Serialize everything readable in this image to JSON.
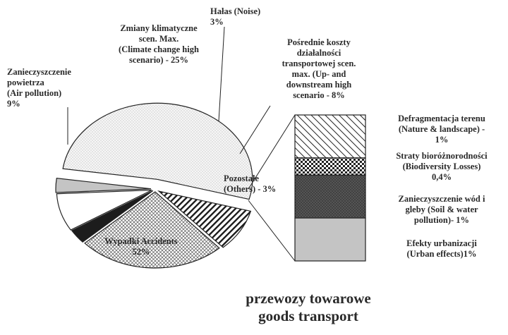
{
  "chart_data": {
    "type": "pie",
    "title_lines": [
      "przewozy towarowe",
      "goods transport"
    ],
    "slices": [
      {
        "label_lines": [
          "Wypadki Accidents",
          "52%"
        ],
        "value": 52,
        "fill": "light-dots",
        "exploded": true
      },
      {
        "label_lines": [
          "Zanieczyszczenie",
          "powietrza",
          "(Air pollution)",
          "9%"
        ],
        "value": 9,
        "fill": "diag-dense"
      },
      {
        "label_lines": [
          "Zmiany klimatyczne",
          "scen. Max.",
          "(Climate change high",
          "scenario) - 25%"
        ],
        "value": 25,
        "fill": "cross-hatch"
      },
      {
        "label_lines": [
          "Hałas (Noise)",
          "3%"
        ],
        "value": 3,
        "fill": "black"
      },
      {
        "label_lines": [
          "Pośrednie koszty",
          "działalności",
          "transportowej scen.",
          "max. (Up- and",
          "downstream high",
          "scenario - 8%"
        ],
        "value": 8,
        "fill": "white"
      },
      {
        "label_lines": [
          "Pozostałe",
          "(Others) - 3%"
        ],
        "value": 3,
        "fill": "grey"
      }
    ],
    "others_breakdown": [
      {
        "label_lines": [
          "Defragmentacja terenu",
          "(Nature & landscape) -",
          "1%"
        ],
        "value": 1,
        "fill": "diag-wide"
      },
      {
        "label_lines": [
          "Straty bioróżnorodności",
          "(Biodiversity Losses)",
          "0,4%"
        ],
        "value": 0.4,
        "fill": "checker"
      },
      {
        "label_lines": [
          "Zanieczyszczenie wód i",
          "gleby  (Soil & water",
          "pollution)- 1%"
        ],
        "value": 1,
        "fill": "dark-dots"
      },
      {
        "label_lines": [
          "Efekty urbanizacji",
          "(Urban effects)1%"
        ],
        "value": 1,
        "fill": "grey"
      }
    ],
    "legend": "none"
  }
}
